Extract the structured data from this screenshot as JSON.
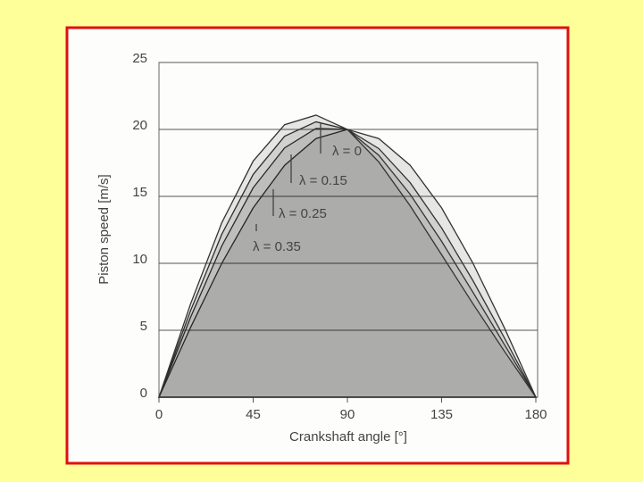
{
  "chart_data": {
    "type": "line",
    "xlabel": "Crankshaft angle [°]",
    "ylabel": "Piston speed [m/s]",
    "x": [
      0,
      15,
      30,
      45,
      60,
      75,
      90,
      105,
      120,
      135,
      150,
      165,
      180
    ],
    "series": [
      {
        "name": "λ = 0",
        "color": "#333333",
        "values": [
          0,
          5.18,
          10,
          14.14,
          17.32,
          19.32,
          20,
          19.32,
          17.32,
          14.14,
          10,
          5.18,
          0
        ]
      },
      {
        "name": "λ = 0.15",
        "color": "#333333",
        "values": [
          0,
          5.93,
          11.3,
          15.64,
          18.62,
          20.07,
          20,
          18.57,
          16.02,
          12.64,
          8.7,
          4.43,
          0
        ]
      },
      {
        "name": "λ = 0.25",
        "color": "#333333",
        "values": [
          0,
          6.43,
          12.17,
          16.64,
          19.49,
          20.57,
          20,
          18.07,
          15.15,
          11.64,
          7.83,
          3.93,
          0
        ]
      },
      {
        "name": "λ = 0.35",
        "color": "#333333",
        "values": [
          0,
          6.93,
          13.03,
          17.64,
          20.35,
          21.07,
          20,
          17.57,
          14.29,
          10.64,
          6.97,
          3.43,
          0
        ]
      }
    ],
    "xlim": [
      0,
      180
    ],
    "xticks": [
      0,
      45,
      90,
      135,
      180
    ],
    "ylim": [
      0,
      25
    ],
    "yticks": [
      0,
      5,
      10,
      15,
      20,
      25
    ],
    "grid": true
  }
}
